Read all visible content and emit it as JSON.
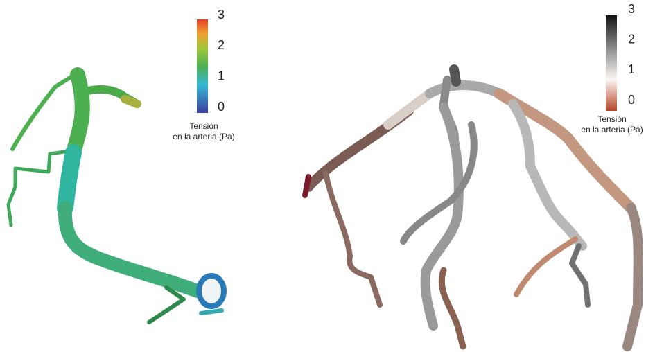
{
  "left_panel": {
    "colorbar": {
      "ticks": [
        0,
        1,
        2,
        3
      ],
      "label_lines": [
        "Tensión",
        "en la arteria (Pa)"
      ]
    }
  },
  "right_panel": {
    "colorbar": {
      "ticks": [
        0,
        1,
        2,
        3
      ],
      "label_lines": [
        "Tensión",
        "en la arteria (Pa)"
      ]
    }
  }
}
